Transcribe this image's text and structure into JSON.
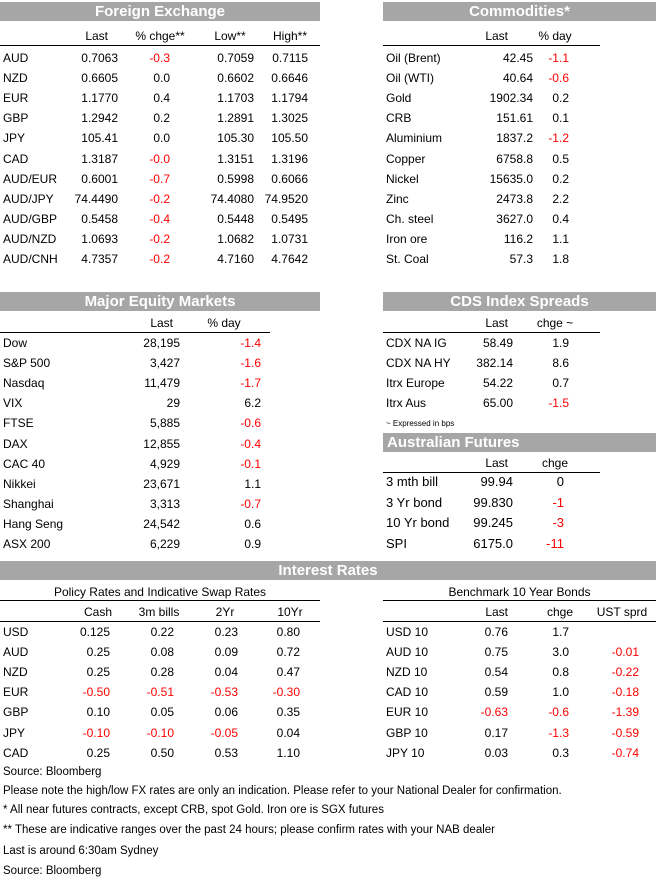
{
  "fx": {
    "title": "Foreign Exchange",
    "headers": [
      "Last",
      "% chge**",
      "Low**",
      "High**"
    ],
    "rows": [
      {
        "name": "AUD",
        "last": "0.7063",
        "chg": "-0.3",
        "low": "0.7059",
        "high": "0.7115"
      },
      {
        "name": "NZD",
        "last": "0.6605",
        "chg": "0.0",
        "low": "0.6602",
        "high": "0.6646"
      },
      {
        "name": "EUR",
        "last": "1.1770",
        "chg": "0.4",
        "low": "1.1703",
        "high": "1.1794"
      },
      {
        "name": "GBP",
        "last": "1.2942",
        "chg": "0.2",
        "low": "1.2891",
        "high": "1.3025"
      },
      {
        "name": "JPY",
        "last": "105.41",
        "chg": "0.0",
        "low": "105.30",
        "high": "105.50"
      },
      {
        "name": "CAD",
        "last": "1.3187",
        "chg": "-0.0",
        "low": "1.3151",
        "high": "1.3196"
      },
      {
        "name": "AUD/EUR",
        "last": "0.6001",
        "chg": "-0.7",
        "low": "0.5998",
        "high": "0.6066"
      },
      {
        "name": "AUD/JPY",
        "last": "74.4490",
        "chg": "-0.2",
        "low": "74.4080",
        "high": "74.9520"
      },
      {
        "name": "AUD/GBP",
        "last": "0.5458",
        "chg": "-0.4",
        "low": "0.5448",
        "high": "0.5495"
      },
      {
        "name": "AUD/NZD",
        "last": "1.0693",
        "chg": "-0.2",
        "low": "1.0682",
        "high": "1.0731"
      },
      {
        "name": "AUD/CNH",
        "last": "4.7357",
        "chg": "-0.2",
        "low": "4.7160",
        "high": "4.7642"
      }
    ]
  },
  "commodities": {
    "title": "Commodities*",
    "headers": [
      "Last",
      "% day"
    ],
    "rows": [
      {
        "name": "Oil (Brent)",
        "last": "42.45",
        "chg": "-1.1"
      },
      {
        "name": "Oil (WTI)",
        "last": "40.64",
        "chg": "-0.6"
      },
      {
        "name": "Gold",
        "last": "1902.34",
        "chg": "0.2"
      },
      {
        "name": "CRB",
        "last": "151.61",
        "chg": "0.1"
      },
      {
        "name": "Aluminium",
        "last": "1837.2",
        "chg": "-1.2"
      },
      {
        "name": "Copper",
        "last": "6758.8",
        "chg": "0.5"
      },
      {
        "name": "Nickel",
        "last": "15635.0",
        "chg": "0.2"
      },
      {
        "name": "Zinc",
        "last": "2473.8",
        "chg": "2.2"
      },
      {
        "name": "Ch. steel",
        "last": "3627.0",
        "chg": "0.4"
      },
      {
        "name": "Iron ore",
        "last": "116.2",
        "chg": "1.1"
      },
      {
        "name": "St. Coal",
        "last": "57.3",
        "chg": "1.8"
      }
    ]
  },
  "equity": {
    "title": "Major Equity Markets",
    "headers": [
      "Last",
      "% day"
    ],
    "rows": [
      {
        "name": "Dow",
        "last": "28,195",
        "chg": "-1.4"
      },
      {
        "name": "S&P 500",
        "last": "3,427",
        "chg": "-1.6"
      },
      {
        "name": "Nasdaq",
        "last": "11,479",
        "chg": "-1.7"
      },
      {
        "name": "VIX",
        "last": "29",
        "chg": "6.2"
      },
      {
        "name": "FTSE",
        "last": "5,885",
        "chg": "-0.6"
      },
      {
        "name": "DAX",
        "last": "12,855",
        "chg": "-0.4"
      },
      {
        "name": "CAC 40",
        "last": "4,929",
        "chg": "-0.1"
      },
      {
        "name": "Nikkei",
        "last": "23,671",
        "chg": "1.1"
      },
      {
        "name": "Shanghai",
        "last": "3,313",
        "chg": "-0.7"
      },
      {
        "name": "Hang Seng",
        "last": "24,542",
        "chg": "0.6"
      },
      {
        "name": "ASX 200",
        "last": "6,229",
        "chg": "0.9"
      }
    ]
  },
  "cds": {
    "title": "CDS Index Spreads",
    "headers": [
      "Last",
      "chge ~"
    ],
    "rows": [
      {
        "name": "CDX NA IG",
        "last": "58.49",
        "chg": "1.9"
      },
      {
        "name": "CDX NA HY",
        "last": "382.14",
        "chg": "8.6"
      },
      {
        "name": "Itrx Europe",
        "last": "54.22",
        "chg": "0.7"
      },
      {
        "name": "Itrx Aus",
        "last": "65.00",
        "chg": "-1.5"
      }
    ],
    "footnote": "~ Expressed in bps"
  },
  "futures": {
    "title": "Australian Futures",
    "headers": [
      "Last",
      "chge"
    ],
    "rows": [
      {
        "name": "3 mth bill",
        "last": "99.94",
        "chg": "0"
      },
      {
        "name": "3 Yr bond",
        "last": "99.830",
        "chg": "-1"
      },
      {
        "name": "10 Yr bond",
        "last": "99.245",
        "chg": "-3"
      },
      {
        "name": "SPI",
        "last": "6175.0",
        "chg": "-11"
      }
    ]
  },
  "rates": {
    "title": "Interest Rates",
    "policy": {
      "title": "Policy Rates and Indicative Swap Rates",
      "headers": [
        "Cash",
        "3m bills",
        "2Yr",
        "10Yr"
      ],
      "rows": [
        {
          "name": "USD",
          "v": [
            "0.125",
            "0.22",
            "0.23",
            "0.80"
          ]
        },
        {
          "name": "AUD",
          "v": [
            "0.25",
            "0.08",
            "0.09",
            "0.72"
          ]
        },
        {
          "name": "NZD",
          "v": [
            "0.25",
            "0.28",
            "0.04",
            "0.47"
          ]
        },
        {
          "name": "EUR",
          "v": [
            "-0.50",
            "-0.51",
            "-0.53",
            "-0.30"
          ]
        },
        {
          "name": "GBP",
          "v": [
            "0.10",
            "0.05",
            "0.06",
            "0.35"
          ]
        },
        {
          "name": "JPY",
          "v": [
            "-0.10",
            "-0.10",
            "-0.05",
            "0.04"
          ]
        },
        {
          "name": "CAD",
          "v": [
            "0.25",
            "0.50",
            "0.53",
            "1.10"
          ]
        }
      ]
    },
    "bonds": {
      "title": "Benchmark 10 Year Bonds",
      "headers": [
        "Last",
        "chge",
        "UST sprd"
      ],
      "rows": [
        {
          "name": "USD 10",
          "last": "0.76",
          "chg": "1.7",
          "sprd": ""
        },
        {
          "name": "AUD 10",
          "last": "0.75",
          "chg": "3.0",
          "sprd": "-0.01"
        },
        {
          "name": "NZD 10",
          "last": "0.54",
          "chg": "0.8",
          "sprd": "-0.22"
        },
        {
          "name": "CAD 10",
          "last": "0.59",
          "chg": "1.0",
          "sprd": "-0.18"
        },
        {
          "name": "EUR 10",
          "last": "-0.63",
          "chg": "-0.6",
          "sprd": "-1.39"
        },
        {
          "name": "GBP 10",
          "last": "0.17",
          "chg": "-1.3",
          "sprd": "-0.59"
        },
        {
          "name": "JPY 10",
          "last": "0.03",
          "chg": "0.3",
          "sprd": "-0.74"
        }
      ]
    }
  },
  "notes": [
    "Source: Bloomberg",
    "Please note the high/low FX rates are only an indication. Please refer to your National Dealer for confirmation.",
    "* All near futures contracts, except CRB, spot Gold.  Iron ore is SGX futures",
    "** These are indicative ranges over the past 24 hours; please confirm rates with your NAB dealer",
    "Last is around 6:30am Sydney",
    "Source: Bloomberg"
  ],
  "colors": {
    "header_bg": "#a6a6a6",
    "negative": "#ff0000"
  }
}
